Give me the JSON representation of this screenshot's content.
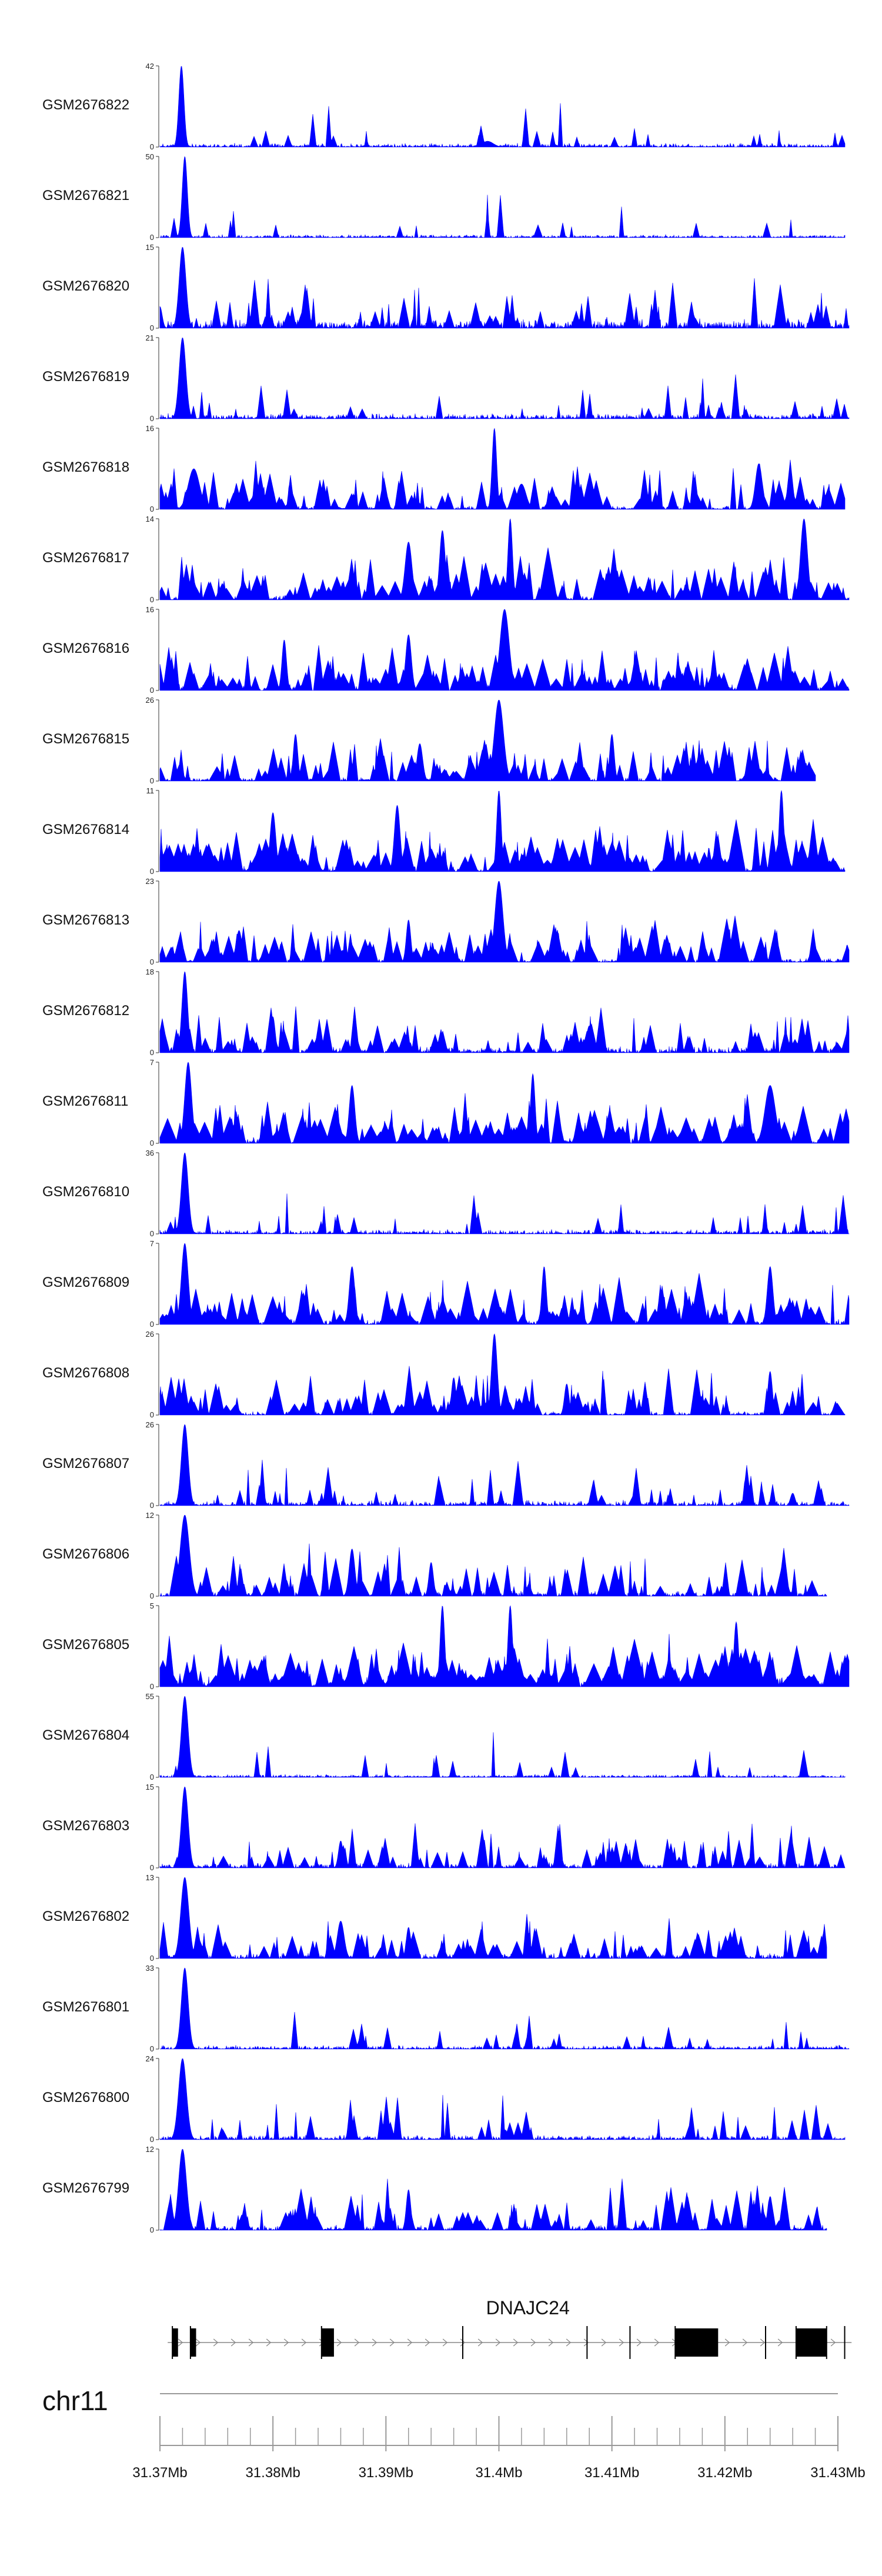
{
  "chart_data": {
    "type": "area",
    "title": "",
    "color": "#0000ff",
    "chromosome": "chr11",
    "gene": {
      "name": "DNAJC24",
      "exons_mb": [
        [
          31.3711,
          31.3716
        ],
        [
          31.3727,
          31.3732
        ],
        [
          31.3843,
          31.3854
        ],
        [
          31.3968,
          31.3972
        ],
        [
          31.4078,
          31.4082
        ],
        [
          31.4116,
          31.412
        ],
        [
          31.4156,
          31.4194
        ],
        [
          31.4236,
          31.424
        ],
        [
          31.4263,
          31.429
        ],
        [
          31.429,
          31.4294
        ],
        [
          31.4306,
          31.431
        ]
      ],
      "extent_mb": [
        31.371,
        31.431
      ]
    },
    "x_axis": {
      "range_mb": [
        31.37,
        31.43
      ],
      "major_ticks": [
        31.37,
        31.38,
        31.39,
        31.4,
        31.41,
        31.42,
        31.43
      ],
      "tick_labels": [
        "31.37Mb",
        "31.38Mb",
        "31.39Mb",
        "31.4Mb",
        "31.41Mb",
        "31.42Mb",
        "31.43Mb"
      ],
      "minor_step_mb": 0.002
    },
    "tracks": [
      {
        "name": "GSM2676822",
        "ymax_label": "42",
        "ymin_label": "0",
        "ymax": 42,
        "seed": 11,
        "noise": 0.05,
        "spiky": 0.1,
        "end_mb": 31.4306,
        "peaks": [
          [
            31.3719,
            42,
            0.00045
          ],
          [
            31.399,
            3,
            0.001
          ]
        ]
      },
      {
        "name": "GSM2676821",
        "ymax_label": "50",
        "ymin_label": "0",
        "ymax": 50,
        "seed": 12,
        "noise": 0.04,
        "spiky": 0.08,
        "end_mb": 31.4306,
        "peaks": [
          [
            31.3722,
            50,
            0.00045
          ]
        ]
      },
      {
        "name": "GSM2676820",
        "ymax_label": "15",
        "ymin_label": "0",
        "ymax": 15,
        "seed": 13,
        "noise": 0.12,
        "spiky": 0.3,
        "end_mb": 31.431,
        "peaks": [
          [
            31.372,
            15,
            0.0006
          ],
          [
            31.37,
            4,
            0.0004
          ]
        ]
      },
      {
        "name": "GSM2676819",
        "ymax_label": "21",
        "ymin_label": "0",
        "ymax": 21,
        "seed": 14,
        "noise": 0.07,
        "spiky": 0.15,
        "end_mb": 31.431,
        "peaks": [
          [
            31.372,
            21,
            0.0006
          ]
        ]
      },
      {
        "name": "GSM2676818",
        "ymax_label": "16",
        "ymin_label": "0",
        "ymax": 16,
        "seed": 15,
        "noise": 0.05,
        "spiky": 0.55,
        "end_mb": 31.4306,
        "peaks": [
          [
            31.3996,
            16,
            0.0004
          ],
          [
            31.373,
            8,
            0.001
          ],
          [
            31.402,
            5,
            0.0008
          ],
          [
            31.423,
            9,
            0.0006
          ]
        ]
      },
      {
        "name": "GSM2676817",
        "ymax_label": "14",
        "ymin_label": "0",
        "ymax": 14,
        "seed": 16,
        "noise": 0.06,
        "spiky": 0.7,
        "end_mb": 31.431,
        "peaks": [
          [
            31.401,
            14,
            0.0004
          ],
          [
            31.427,
            14,
            0.0006
          ],
          [
            31.392,
            10,
            0.0006
          ],
          [
            31.395,
            12,
            0.0005
          ]
        ]
      },
      {
        "name": "GSM2676816",
        "ymax_label": "16",
        "ymin_label": "0",
        "ymax": 16,
        "seed": 17,
        "noise": 0.08,
        "spiky": 0.65,
        "end_mb": 31.431,
        "peaks": [
          [
            31.4005,
            16,
            0.0008
          ],
          [
            31.392,
            11,
            0.0005
          ],
          [
            31.381,
            10,
            0.0004
          ]
        ]
      },
      {
        "name": "GSM2676815",
        "ymax_label": "26",
        "ymin_label": "0",
        "ymax": 26,
        "seed": 18,
        "noise": 0.05,
        "spiky": 0.55,
        "end_mb": 31.428,
        "peaks": [
          [
            31.4,
            26,
            0.0008
          ],
          [
            31.382,
            15,
            0.0004
          ],
          [
            31.41,
            15,
            0.0004
          ],
          [
            31.393,
            12,
            0.0005
          ]
        ]
      },
      {
        "name": "GSM2676814",
        "ymax_label": "11",
        "ymin_label": "0",
        "ymax": 11,
        "seed": 19,
        "noise": 0.08,
        "spiky": 0.8,
        "end_mb": 31.4306,
        "peaks": [
          [
            31.4,
            11,
            0.0004
          ],
          [
            31.425,
            11,
            0.0004
          ],
          [
            31.391,
            9,
            0.0005
          ],
          [
            31.38,
            8,
            0.0005
          ]
        ]
      },
      {
        "name": "GSM2676813",
        "ymax_label": "23",
        "ymin_label": "0",
        "ymax": 23,
        "seed": 20,
        "noise": 0.05,
        "spiky": 0.6,
        "end_mb": 31.431,
        "peaks": [
          [
            31.4,
            23,
            0.0007
          ],
          [
            31.392,
            12,
            0.0004
          ],
          [
            31.377,
            9,
            0.0005
          ]
        ]
      },
      {
        "name": "GSM2676812",
        "ymax_label": "18",
        "ymin_label": "0",
        "ymax": 18,
        "seed": 21,
        "noise": 0.08,
        "spiky": 0.4,
        "end_mb": 31.431,
        "peaks": [
          [
            31.3722,
            18,
            0.0005
          ],
          [
            31.38,
            8,
            0.0004
          ],
          [
            31.408,
            6,
            0.0005
          ]
        ]
      },
      {
        "name": "GSM2676811",
        "ymax_label": "7",
        "ymin_label": "0",
        "ymax": 7,
        "seed": 22,
        "noise": 0.08,
        "spiky": 0.75,
        "end_mb": 31.431,
        "peaks": [
          [
            31.3725,
            7,
            0.0006
          ],
          [
            31.387,
            5,
            0.0005
          ],
          [
            31.403,
            6,
            0.0004
          ],
          [
            31.424,
            5,
            0.0009
          ]
        ]
      },
      {
        "name": "GSM2676810",
        "ymax_label": "36",
        "ymin_label": "0",
        "ymax": 36,
        "seed": 23,
        "noise": 0.06,
        "spiky": 0.12,
        "end_mb": 31.431,
        "peaks": [
          [
            31.3722,
            36,
            0.0006
          ]
        ]
      },
      {
        "name": "GSM2676809",
        "ymax_label": "7",
        "ymin_label": "0",
        "ymax": 7,
        "seed": 24,
        "noise": 0.07,
        "spiky": 0.7,
        "end_mb": 31.431,
        "peaks": [
          [
            31.3722,
            7,
            0.0006
          ],
          [
            31.387,
            5,
            0.0005
          ],
          [
            31.404,
            5,
            0.0004
          ],
          [
            31.424,
            5,
            0.0005
          ]
        ]
      },
      {
        "name": "GSM2676808",
        "ymax_label": "26",
        "ymin_label": "0",
        "ymax": 26,
        "seed": 25,
        "noise": 0.05,
        "spiky": 0.55,
        "end_mb": 31.4306,
        "peaks": [
          [
            31.3996,
            26,
            0.0005
          ],
          [
            31.396,
            12,
            0.0004
          ],
          [
            31.406,
            10,
            0.0004
          ],
          [
            31.424,
            14,
            0.0004
          ]
        ]
      },
      {
        "name": "GSM2676807",
        "ymax_label": "26",
        "ymin_label": "0",
        "ymax": 26,
        "seed": 26,
        "noise": 0.07,
        "spiky": 0.2,
        "end_mb": 31.431,
        "peaks": [
          [
            31.3722,
            26,
            0.0006
          ],
          [
            31.426,
            4,
            0.0004
          ]
        ]
      },
      {
        "name": "GSM2676806",
        "ymax_label": "12",
        "ymin_label": "0",
        "ymax": 12,
        "seed": 27,
        "noise": 0.07,
        "spiky": 0.45,
        "end_mb": 31.429,
        "peaks": [
          [
            31.3722,
            12,
            0.0008
          ],
          [
            31.387,
            7,
            0.0005
          ],
          [
            31.394,
            5,
            0.0004
          ]
        ]
      },
      {
        "name": "GSM2676805",
        "ymax_label": "5",
        "ymin_label": "0",
        "ymax": 5,
        "seed": 28,
        "noise": 0.15,
        "spiky": 0.9,
        "end_mb": 31.431,
        "peaks": [
          [
            31.395,
            5,
            0.0004
          ],
          [
            31.401,
            5,
            0.0004
          ],
          [
            31.421,
            4,
            0.0004
          ]
        ]
      },
      {
        "name": "GSM2676804",
        "ymax_label": "55",
        "ymin_label": "0",
        "ymax": 55,
        "seed": 29,
        "noise": 0.04,
        "spiky": 0.08,
        "end_mb": 31.4306,
        "peaks": [
          [
            31.3722,
            55,
            0.0006
          ]
        ]
      },
      {
        "name": "GSM2676803",
        "ymax_label": "15",
        "ymin_label": "0",
        "ymax": 15,
        "seed": 30,
        "noise": 0.07,
        "spiky": 0.35,
        "end_mb": 31.4306,
        "peaks": [
          [
            31.3722,
            15,
            0.0006
          ],
          [
            31.386,
            5,
            0.0004
          ]
        ]
      },
      {
        "name": "GSM2676802",
        "ymax_label": "13",
        "ymin_label": "0",
        "ymax": 13,
        "seed": 31,
        "noise": 0.07,
        "spiky": 0.45,
        "end_mb": 31.429,
        "peaks": [
          [
            31.3722,
            13,
            0.0007
          ],
          [
            31.386,
            6,
            0.0006
          ],
          [
            31.392,
            5,
            0.0004
          ]
        ]
      },
      {
        "name": "GSM2676801",
        "ymax_label": "33",
        "ymin_label": "0",
        "ymax": 33,
        "seed": 32,
        "noise": 0.05,
        "spiky": 0.12,
        "end_mb": 31.431,
        "peaks": [
          [
            31.3722,
            33,
            0.0006
          ]
        ]
      },
      {
        "name": "GSM2676800",
        "ymax_label": "24",
        "ymin_label": "0",
        "ymax": 24,
        "seed": 33,
        "noise": 0.06,
        "spiky": 0.2,
        "end_mb": 31.4306,
        "peaks": [
          [
            31.372,
            24,
            0.0007
          ]
        ]
      },
      {
        "name": "GSM2676799",
        "ymax_label": "12",
        "ymin_label": "0",
        "ymax": 12,
        "seed": 34,
        "noise": 0.07,
        "spiky": 0.45,
        "end_mb": 31.429,
        "peaks": [
          [
            31.372,
            12,
            0.0007
          ],
          [
            31.392,
            6,
            0.0004
          ],
          [
            31.424,
            5,
            0.0004
          ]
        ]
      }
    ]
  }
}
